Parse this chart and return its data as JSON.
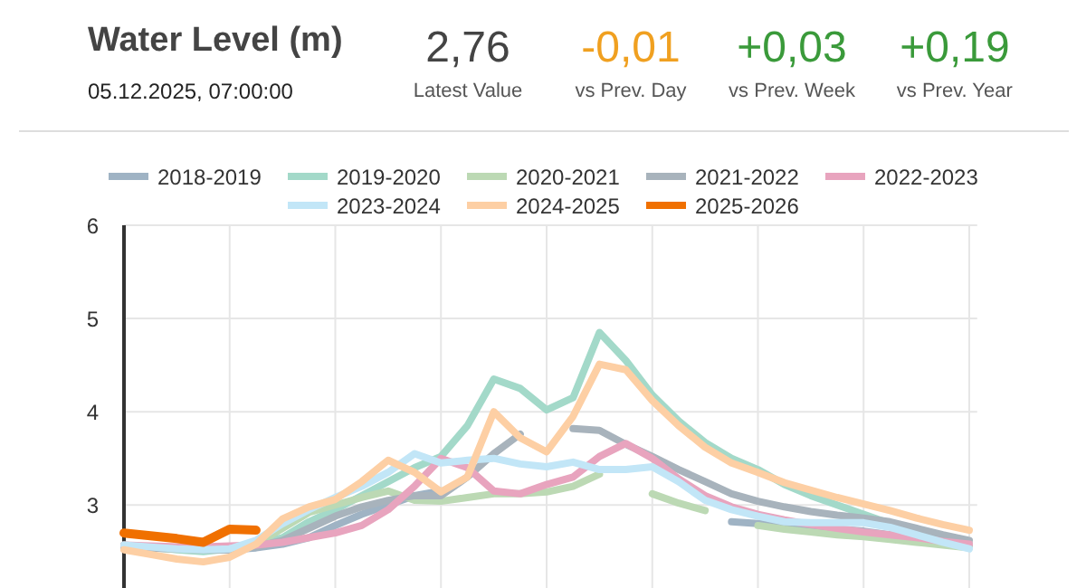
{
  "chart_data": {
    "type": "line",
    "title": "Water Level (m)",
    "subtitle": "05.12.2025, 07:00:00",
    "annotations": [
      "2,76",
      "Latest Value",
      "-0,01",
      "vs Prev. Day",
      "+0,03",
      "vs Prev. Week",
      "+0,19",
      "vs Prev. Year"
    ],
    "categories": [
      null,
      null,
      null,
      null,
      null,
      null,
      null,
      null,
      null,
      null,
      null,
      null,
      null,
      null,
      null,
      null,
      null,
      null,
      null,
      null,
      null,
      null,
      null,
      null,
      null,
      null,
      null,
      null,
      null,
      null,
      null,
      null,
      null
    ],
    "ylim": [
      2.1,
      6
    ],
    "yticks": [
      3,
      4,
      5,
      6
    ],
    "tick_labels": "y",
    "grid": true,
    "legend": "top",
    "marker": "none",
    "line_style": "solid",
    "series": [
      {
        "name": "2018-2019",
        "color": "#9fb3c4",
        "values": [
          2.55,
          2.54,
          2.53,
          2.52,
          2.52,
          2.54,
          2.58,
          2.65,
          2.78,
          2.9,
          3.0,
          3.1,
          3.15,
          null,
          null,
          null,
          null,
          null,
          null,
          null,
          null,
          null,
          null,
          2.82,
          2.8,
          2.78,
          2.76,
          2.74,
          2.72,
          2.68,
          2.64,
          2.6,
          2.56
        ]
      },
      {
        "name": "2019-2020",
        "color": "#a3d9c9",
        "values": [
          2.57,
          2.55,
          2.52,
          2.5,
          2.53,
          2.58,
          2.65,
          2.82,
          2.95,
          3.1,
          3.25,
          3.4,
          3.52,
          3.85,
          4.35,
          4.25,
          4.02,
          4.15,
          4.85,
          4.55,
          4.18,
          3.9,
          3.67,
          3.5,
          3.38,
          3.22,
          3.1,
          3.0,
          2.9,
          2.8,
          2.72,
          2.65,
          2.58
        ]
      },
      {
        "name": "2020-2021",
        "color": "#bcd9b4",
        "values": [
          2.55,
          2.54,
          2.53,
          2.52,
          2.54,
          2.58,
          2.75,
          2.92,
          3.0,
          3.08,
          3.15,
          3.05,
          3.04,
          3.08,
          3.12,
          3.12,
          3.14,
          3.2,
          3.33,
          null,
          3.12,
          3.02,
          2.94,
          null,
          2.78,
          2.74,
          2.71,
          2.68,
          2.66,
          2.63,
          2.6,
          2.57,
          2.54
        ]
      },
      {
        "name": "2021-2022",
        "color": "#a8b3bc",
        "values": [
          2.55,
          2.54,
          2.53,
          2.52,
          2.52,
          2.55,
          2.62,
          2.75,
          2.88,
          2.98,
          3.05,
          3.1,
          3.1,
          3.3,
          3.55,
          3.76,
          null,
          3.82,
          3.8,
          3.65,
          3.52,
          3.38,
          3.25,
          3.12,
          3.04,
          2.98,
          2.93,
          2.89,
          2.86,
          2.82,
          2.75,
          2.68,
          2.62
        ]
      },
      {
        "name": "2022-2023",
        "color": "#e8a4be",
        "values": [
          2.57,
          2.56,
          2.55,
          2.55,
          2.56,
          2.57,
          2.6,
          2.65,
          2.7,
          2.78,
          2.95,
          3.2,
          3.5,
          3.4,
          3.15,
          3.12,
          3.22,
          3.3,
          3.52,
          3.66,
          3.5,
          3.28,
          3.1,
          2.98,
          2.9,
          2.84,
          2.79,
          2.75,
          2.71,
          2.68,
          2.65,
          2.61,
          2.58
        ]
      },
      {
        "name": "2023-2024",
        "color": "#c2e6f7",
        "values": [
          2.57,
          2.55,
          2.53,
          2.52,
          2.53,
          2.62,
          2.8,
          2.95,
          3.08,
          3.2,
          3.35,
          3.55,
          3.45,
          3.48,
          3.5,
          3.44,
          3.41,
          3.46,
          3.38,
          3.38,
          3.41,
          3.25,
          3.05,
          2.95,
          2.88,
          2.82,
          2.81,
          2.81,
          2.81,
          2.76,
          2.68,
          2.6,
          2.53
        ]
      },
      {
        "name": "2024-2025",
        "color": "#fdcfa4",
        "values": [
          2.52,
          2.47,
          2.42,
          2.39,
          2.44,
          2.58,
          2.85,
          2.98,
          3.06,
          3.25,
          3.48,
          3.35,
          3.14,
          3.3,
          4.0,
          3.72,
          3.57,
          3.95,
          4.51,
          4.45,
          4.12,
          3.85,
          3.62,
          3.45,
          3.35,
          3.24,
          3.16,
          3.08,
          3.01,
          2.94,
          2.86,
          2.79,
          2.73
        ]
      },
      {
        "name": "2025-2026",
        "color": "#f07000",
        "values": [
          2.7,
          2.67,
          2.64,
          2.6,
          2.74,
          2.73,
          null,
          null,
          null,
          null,
          null,
          null,
          null,
          null,
          null,
          null,
          null,
          null,
          null,
          null,
          null,
          null,
          null,
          null,
          null,
          null,
          null,
          null,
          null,
          null,
          null,
          null,
          null
        ]
      }
    ]
  }
}
